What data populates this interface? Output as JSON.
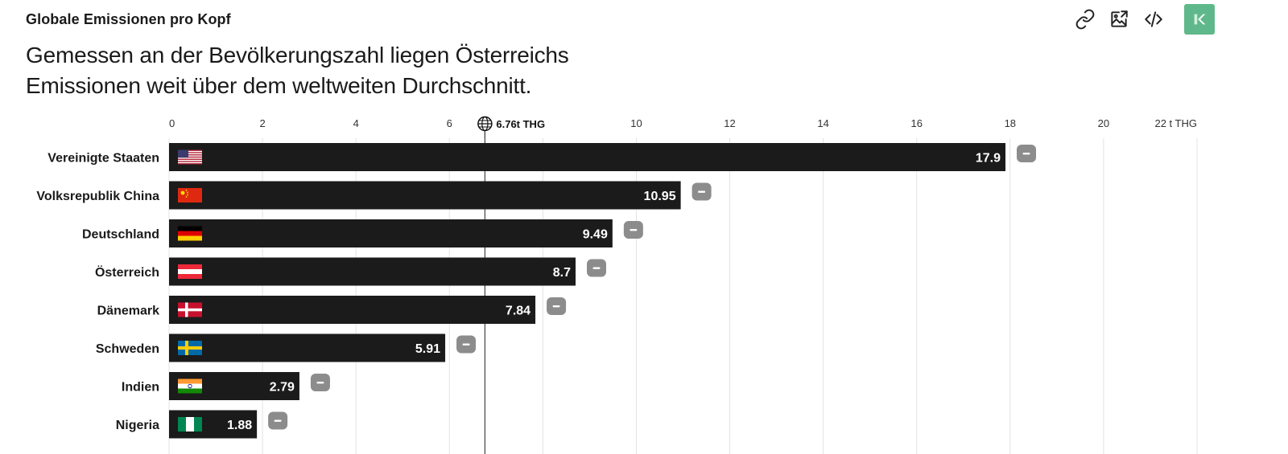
{
  "header": {
    "kicker": "Globale Emissionen pro Kopf",
    "headline": "Gemessen an der Bevölkerungszahl liegen Österreichs Emissionen weit über dem weltweiten Durchschnitt."
  },
  "toolbar": {
    "icons": [
      "link-icon",
      "image-export-icon",
      "embed-code-icon"
    ],
    "logo": "brand-logo"
  },
  "colors": {
    "bar": "#1b1b1b",
    "value_text": "#ffffff",
    "grid": "#e3e3e3",
    "reference_line": "#444444",
    "collapse_button": "#8c8c8c",
    "logo": "#5fb889"
  },
  "chart_data": {
    "type": "bar",
    "orientation": "horizontal",
    "title": "Globale Emissionen pro Kopf",
    "subtitle": "Gemessen an der Bevölkerungszahl liegen Österreichs Emissionen weit über dem weltweiten Durchschnitt.",
    "categories": [
      "Vereinigte Staaten",
      "Volksrepublik China",
      "Deutschland",
      "Österreich",
      "Dänemark",
      "Schweden",
      "Indien",
      "Nigeria"
    ],
    "values": [
      17.9,
      10.95,
      9.49,
      8.7,
      7.84,
      5.91,
      2.79,
      1.88
    ],
    "value_labels": [
      "17.9",
      "10.95",
      "9.49",
      "8.7",
      "7.84",
      "5.91",
      "2.79",
      "1.88"
    ],
    "flags": [
      "us",
      "cn",
      "de",
      "at",
      "dk",
      "se",
      "in",
      "ng"
    ],
    "xlim": [
      0,
      22
    ],
    "x_ticks": [
      0,
      2,
      4,
      6,
      8,
      10,
      12,
      14,
      16,
      18,
      20,
      22
    ],
    "x_tick_labels": [
      "0",
      "2",
      "4",
      "6",
      "",
      "10",
      "12",
      "14",
      "16",
      "18",
      "20",
      "22 t THG"
    ],
    "reference": {
      "value": 6.76,
      "label": "6.76t THG",
      "icon": "globe-icon"
    },
    "grid": true,
    "legend": "none"
  }
}
